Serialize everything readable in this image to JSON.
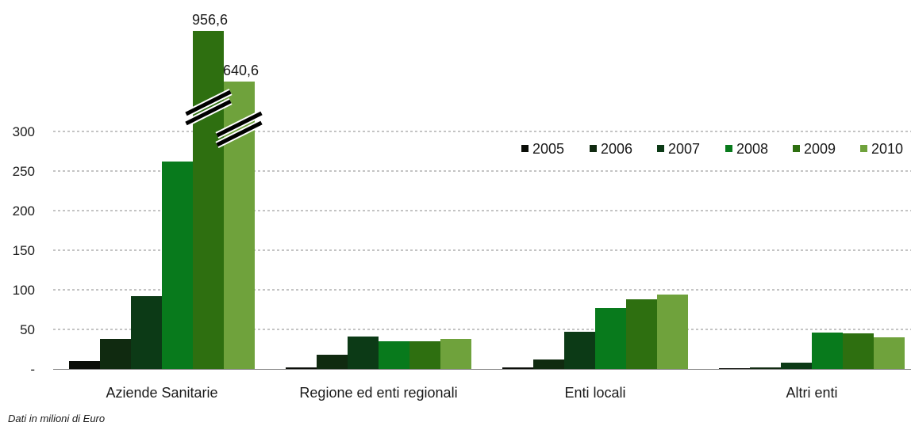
{
  "chart_data": {
    "type": "bar",
    "categories": [
      "Aziende Sanitarie",
      "Regione ed enti regionali",
      "Enti locali",
      "Altri enti"
    ],
    "series": [
      {
        "name": "2005",
        "color": "#0a0d08",
        "values": [
          10,
          2,
          2,
          1
        ]
      },
      {
        "name": "2006",
        "color": "#102a10",
        "values": [
          38,
          18,
          12,
          2
        ]
      },
      {
        "name": "2007",
        "color": "#0c3a16",
        "values": [
          92,
          41,
          47,
          8
        ]
      },
      {
        "name": "2008",
        "color": "#087a1c",
        "values": [
          262,
          35,
          77,
          46
        ]
      },
      {
        "name": "2009",
        "color": "#2e6f10",
        "values": [
          956.6,
          35,
          88,
          45
        ]
      },
      {
        "name": "2010",
        "color": "#6fa23c",
        "values": [
          640.6,
          38,
          94,
          40
        ]
      }
    ],
    "data_labels": [
      {
        "category": "Aziende Sanitarie",
        "series": "2009",
        "text": "956,6"
      },
      {
        "category": "Aziende Sanitarie",
        "series": "2010",
        "text": "640,6"
      }
    ],
    "y_ticks": [
      "-",
      "50",
      "100",
      "150",
      "200",
      "250",
      "300"
    ],
    "ylim": [
      0,
      300
    ],
    "axis_break": true,
    "grid": "dashed horizontal",
    "legend_position": "top-right",
    "title": "",
    "xlabel": "",
    "ylabel": ""
  },
  "footnote": "Dati in milioni di Euro"
}
